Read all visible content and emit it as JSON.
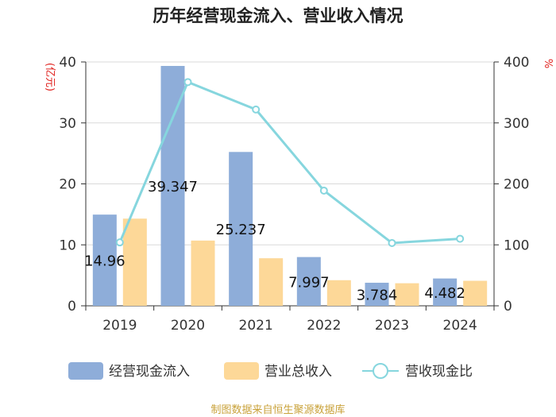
{
  "chart_data": {
    "type": "bar+line",
    "title": "历年经营现金流入、营业收入情况",
    "categories": [
      "2019",
      "2020",
      "2021",
      "2022",
      "2023",
      "2024"
    ],
    "series": [
      {
        "name": "经营现金流入",
        "type": "bar",
        "axis": "left",
        "color": "#8eadd9",
        "values": [
          14.96,
          39.347,
          25.237,
          7.997,
          3.784,
          4.482
        ],
        "labels": [
          "14.96",
          "39.347",
          "25.237",
          "7.997",
          "3.784",
          "4.482"
        ]
      },
      {
        "name": "营业总收入",
        "type": "bar",
        "axis": "left",
        "color": "#fdd898",
        "values": [
          14.3,
          10.7,
          7.8,
          4.2,
          3.7,
          4.1
        ]
      },
      {
        "name": "营收现金比",
        "type": "line",
        "axis": "right",
        "color": "#86d6de",
        "values": [
          104,
          367,
          322,
          189,
          103,
          110
        ]
      }
    ],
    "y_left": {
      "unit": "(亿元)",
      "min": 0,
      "max": 40,
      "ticks": [
        "0",
        "10",
        "20",
        "30",
        "40"
      ]
    },
    "y_right": {
      "unit": "%",
      "min": 0,
      "max": 400,
      "ticks": [
        "0",
        "100",
        "200",
        "300",
        "400"
      ]
    },
    "grid": true,
    "legend_position": "bottom"
  },
  "source": "制图数据来自恒生聚源数据库"
}
